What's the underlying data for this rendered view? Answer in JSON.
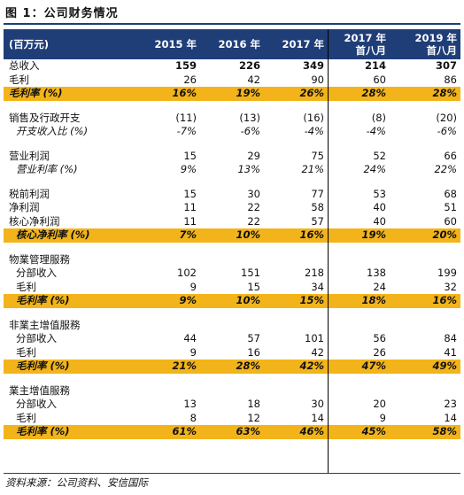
{
  "title": "图 1：公司财务情况",
  "header": {
    "unit": "(百万元)",
    "cols": [
      "2015 年",
      "2016 年",
      "2017 年",
      "2017 年|首八月",
      "2019 年|首八月"
    ]
  },
  "rows": [
    {
      "label": "总收入",
      "vals": [
        "159",
        "226",
        "349",
        "214",
        "307"
      ],
      "style": "bold"
    },
    {
      "label": "毛利",
      "vals": [
        "26",
        "42",
        "90",
        "60",
        "86"
      ]
    },
    {
      "label": "毛利率 (%)",
      "vals": [
        "16%",
        "19%",
        "26%",
        "28%",
        "28%"
      ],
      "style": "gold"
    },
    {
      "gap": true
    },
    {
      "label": "销售及行政开支",
      "vals": [
        "(11)",
        "(13)",
        "(16)",
        "(8)",
        "(20)"
      ]
    },
    {
      "label": "开支收入比 (%)",
      "vals": [
        "-7%",
        "-6%",
        "-4%",
        "-4%",
        "-6%"
      ],
      "style": "italic",
      "indent": true
    },
    {
      "gap": true
    },
    {
      "label": "营业利润",
      "vals": [
        "15",
        "29",
        "75",
        "52",
        "66"
      ]
    },
    {
      "label": "营业利率 (%)",
      "vals": [
        "9%",
        "13%",
        "21%",
        "24%",
        "22%"
      ],
      "style": "italic",
      "indent": true
    },
    {
      "gap": true
    },
    {
      "label": "税前利润",
      "vals": [
        "15",
        "30",
        "77",
        "53",
        "68"
      ]
    },
    {
      "label": "净利润",
      "vals": [
        "11",
        "22",
        "58",
        "40",
        "51"
      ]
    },
    {
      "label": "核心净利润",
      "vals": [
        "11",
        "22",
        "57",
        "40",
        "60"
      ]
    },
    {
      "label": "核心净利率 (%)",
      "vals": [
        "7%",
        "10%",
        "16%",
        "19%",
        "20%"
      ],
      "style": "gold",
      "indent": true
    },
    {
      "gap": true
    },
    {
      "label": "物業管理服務",
      "vals": [
        "",
        "",
        "",
        "",
        ""
      ]
    },
    {
      "label": "分部收入",
      "vals": [
        "102",
        "151",
        "218",
        "138",
        "199"
      ],
      "indent": true
    },
    {
      "label": "毛利",
      "vals": [
        "9",
        "15",
        "34",
        "24",
        "32"
      ],
      "indent": true
    },
    {
      "label": "毛利率 (%)",
      "vals": [
        "9%",
        "10%",
        "15%",
        "18%",
        "16%"
      ],
      "style": "gold",
      "indent": true
    },
    {
      "gap": true
    },
    {
      "label": "非業主增值服務",
      "vals": [
        "",
        "",
        "",
        "",
        ""
      ]
    },
    {
      "label": "分部收入",
      "vals": [
        "44",
        "57",
        "101",
        "56",
        "84"
      ],
      "indent": true
    },
    {
      "label": "毛利",
      "vals": [
        "9",
        "16",
        "42",
        "26",
        "41"
      ],
      "indent": true
    },
    {
      "label": "毛利率 (%)",
      "vals": [
        "21%",
        "28%",
        "42%",
        "47%",
        "49%"
      ],
      "style": "gold",
      "indent": true
    },
    {
      "gap": true
    },
    {
      "label": "業主增值服務",
      "vals": [
        "",
        "",
        "",
        "",
        ""
      ]
    },
    {
      "label": "分部收入",
      "vals": [
        "13",
        "18",
        "30",
        "20",
        "23"
      ],
      "indent": true
    },
    {
      "label": "毛利",
      "vals": [
        "8",
        "12",
        "14",
        "9",
        "14"
      ],
      "indent": true
    },
    {
      "label": "毛利率 (%)",
      "vals": [
        "61%",
        "63%",
        "46%",
        "45%",
        "58%"
      ],
      "style": "gold",
      "indent": true
    }
  ],
  "source": "资料来源：公司资料、安信国际",
  "colors": {
    "header_bg": "#1f3e78",
    "highlight": "#f2b41a"
  }
}
